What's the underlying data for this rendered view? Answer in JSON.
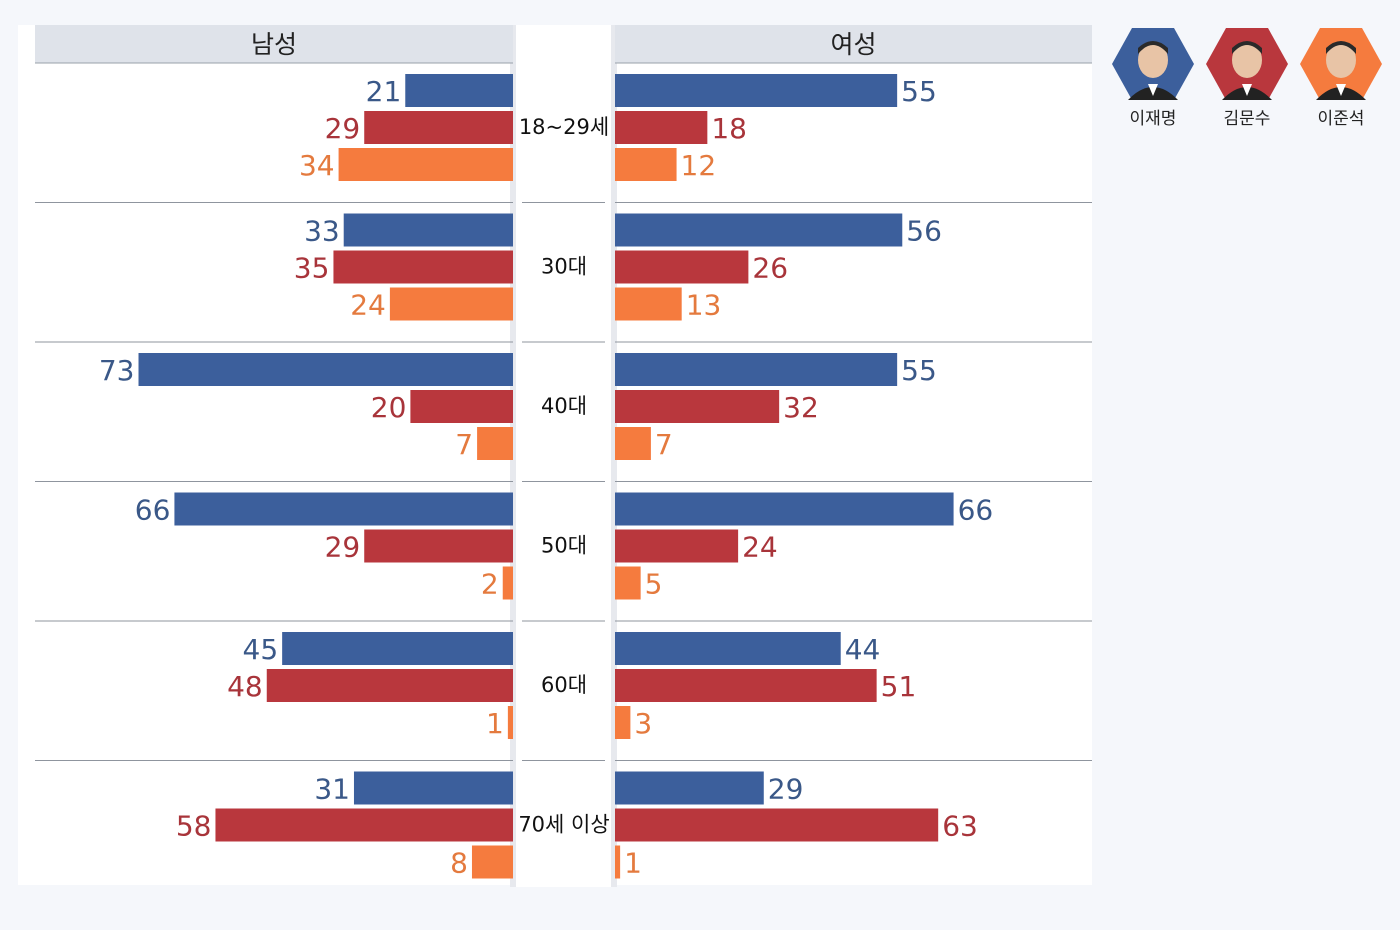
{
  "chart_data": {
    "type": "bar",
    "orientation": "horizontal",
    "layout": "diverging",
    "panels": [
      "남성",
      "여성"
    ],
    "categories": [
      "18~29세",
      "30대",
      "40대",
      "50대",
      "60대",
      "70세 이상"
    ],
    "series": [
      {
        "name": "이재명",
        "color": "#3c5f9c",
        "label_color": "#3a5888",
        "male": [
          21,
          33,
          73,
          66,
          45,
          31
        ],
        "female": [
          55,
          56,
          55,
          66,
          44,
          29
        ]
      },
      {
        "name": "김문수",
        "color": "#b9373d",
        "label_color": "#a8343a",
        "male": [
          29,
          35,
          20,
          29,
          48,
          58
        ],
        "female": [
          18,
          26,
          32,
          24,
          51,
          63
        ]
      },
      {
        "name": "이준석",
        "color": "#f57b3e",
        "label_color": "#e47a3e",
        "male": [
          34,
          24,
          7,
          2,
          1,
          8
        ],
        "female": [
          12,
          13,
          7,
          5,
          3,
          1
        ]
      }
    ],
    "legend_position": "top-right"
  },
  "legend": {
    "items": [
      {
        "label": "이재명",
        "color": "#3c5f9c",
        "icon": "candidate-portrait-icon"
      },
      {
        "label": "김문수",
        "color": "#b9373d",
        "icon": "candidate-portrait-icon"
      },
      {
        "label": "이준석",
        "color": "#f57b3e",
        "icon": "candidate-portrait-icon"
      }
    ]
  }
}
